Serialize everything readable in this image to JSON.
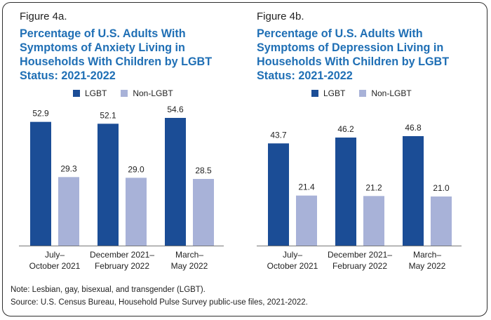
{
  "colors": {
    "lgbt": "#1b4d96",
    "non_lgbt": "#a8b2d8",
    "title": "#1f6fb5"
  },
  "legend": {
    "lgbt": "LGBT",
    "non_lgbt": "Non-LGBT"
  },
  "figures": [
    {
      "label": "Figure 4a.",
      "title_lines": [
        "Percentage of U.S. Adults With",
        "Symptoms of Anxiety Living in",
        "Households With Children by LGBT",
        "Status: 2021-2022"
      ]
    },
    {
      "label": "Figure 4b.",
      "title_lines": [
        "Percentage of U.S. Adults With",
        "Symptoms of Depression Living in",
        "Households With Children by LGBT",
        "Status: 2021-2022"
      ]
    }
  ],
  "chart_data": [
    {
      "type": "bar",
      "title": "Percentage of U.S. Adults With Symptoms of Anxiety Living in Households With Children by LGBT Status: 2021-2022",
      "categories": [
        [
          "July–",
          "October 2021"
        ],
        [
          "December 2021–",
          "February 2022"
        ],
        [
          "March–",
          "May 2022"
        ]
      ],
      "series": [
        {
          "name": "LGBT",
          "values": [
            52.9,
            52.1,
            54.6
          ],
          "labels": [
            "52.9",
            "52.1",
            "54.6"
          ]
        },
        {
          "name": "Non-LGBT",
          "values": [
            29.3,
            29.0,
            28.5
          ],
          "labels": [
            "29.3",
            "29.0",
            "28.5"
          ]
        }
      ],
      "ylim": [
        0,
        60
      ]
    },
    {
      "type": "bar",
      "title": "Percentage of U.S. Adults With Symptoms of Depression Living in Households With Children by LGBT Status: 2021-2022",
      "categories": [
        [
          "July–",
          "October 2021"
        ],
        [
          "December 2021–",
          "February 2022"
        ],
        [
          "March–",
          "May 2022"
        ]
      ],
      "series": [
        {
          "name": "LGBT",
          "values": [
            43.7,
            46.2,
            46.8
          ],
          "labels": [
            "43.7",
            "46.2",
            "46.8"
          ]
        },
        {
          "name": "Non-LGBT",
          "values": [
            21.4,
            21.2,
            21.0
          ],
          "labels": [
            "21.4",
            "21.2",
            "21.0"
          ]
        }
      ],
      "ylim": [
        0,
        60
      ]
    }
  ],
  "notes": {
    "note": "Note: Lesbian, gay, bisexual, and transgender (LGBT).",
    "source": "Source: U.S. Census Bureau, Household Pulse Survey public-use files, 2021-2022."
  }
}
